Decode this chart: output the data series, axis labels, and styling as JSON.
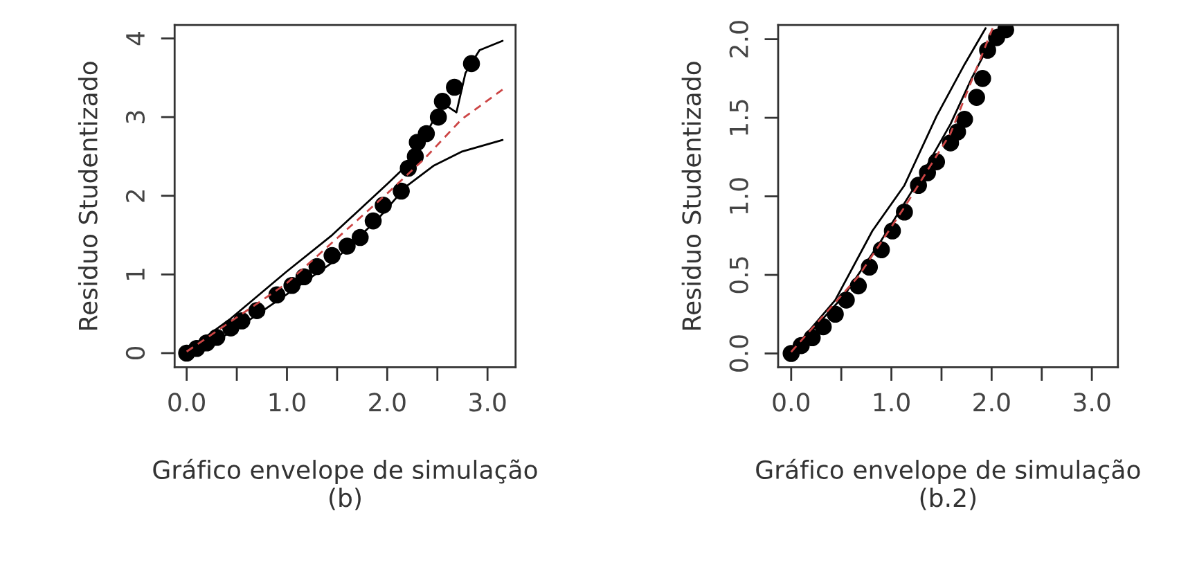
{
  "chart_data": [
    {
      "type": "scatter",
      "xlabel": "Gráfico envelope de simulação\n(b)",
      "ylabel": "Residuo Studentizado",
      "xlim": [
        -0.12,
        3.28
      ],
      "ylim": [
        -0.18,
        4.17
      ],
      "xticks": [
        {
          "value": 0,
          "label": "0.0"
        },
        {
          "value": 0.5,
          "label": null
        },
        {
          "value": 1,
          "label": "1.0"
        },
        {
          "value": 1.5,
          "label": null
        },
        {
          "value": 2,
          "label": "2.0"
        },
        {
          "value": 2.5,
          "label": null
        },
        {
          "value": 3,
          "label": "3.0"
        }
      ],
      "yticks": [
        0,
        1,
        2,
        3,
        4
      ],
      "grid": false,
      "legend": false,
      "series": [
        {
          "marker": "circle",
          "color": "#000000",
          "x": [
            0,
            0.1,
            0.2,
            0.3,
            0.44,
            0.55,
            0.7,
            0.9,
            1.05,
            1.17,
            1.3,
            1.45,
            1.6,
            1.73,
            1.86,
            1.96,
            2.14,
            2.21,
            2.28,
            2.3,
            2.39,
            2.51,
            2.55,
            2.67,
            2.84
          ],
          "values": [
            0,
            0.06,
            0.13,
            0.2,
            0.32,
            0.41,
            0.54,
            0.74,
            0.86,
            0.97,
            1.1,
            1.24,
            1.36,
            1.47,
            1.68,
            1.88,
            2.06,
            2.35,
            2.5,
            2.68,
            2.79,
            3.0,
            3.2,
            3.38,
            3.68
          ]
        },
        {
          "type": "line",
          "line_style": "solid",
          "color": "#000000",
          "x": [
            0,
            0.44,
            0.99,
            1.45,
            2.0,
            2.19,
            2.37,
            2.55,
            2.69,
            2.78,
            2.92,
            3.15
          ],
          "values": [
            0.03,
            0.44,
            1.03,
            1.5,
            2.15,
            2.38,
            2.74,
            3.18,
            3.06,
            3.56,
            3.85,
            3.97
          ]
        },
        {
          "type": "line",
          "line_style": "solid",
          "color": "#000000",
          "x": [
            0,
            0.44,
            0.99,
            1.45,
            1.91,
            2.19,
            2.46,
            2.74,
            3.15
          ],
          "values": [
            0,
            0.26,
            0.74,
            1.15,
            1.71,
            2.12,
            2.38,
            2.56,
            2.71
          ]
        },
        {
          "type": "line",
          "line_style": "dashed",
          "color": "#cc4444",
          "x": [
            0,
            0.99,
            2.0,
            2.37,
            2.74,
            3.15
          ],
          "values": [
            0.02,
            0.88,
            2.03,
            2.47,
            2.97,
            3.35
          ]
        }
      ]
    },
    {
      "type": "scatter",
      "xlabel": "Gráfico envelope de simulação\n(b.2)",
      "ylabel": "Residuo Studentizado",
      "xlim": [
        -0.13,
        3.26
      ],
      "ylim": [
        -0.088,
        2.09
      ],
      "xticks": [
        {
          "value": 0,
          "label": "0.0"
        },
        {
          "value": 0.5,
          "label": null
        },
        {
          "value": 1,
          "label": "1.0"
        },
        {
          "value": 1.5,
          "label": null
        },
        {
          "value": 2,
          "label": "2.0"
        },
        {
          "value": 2.5,
          "label": null
        },
        {
          "value": 3,
          "label": "3.0"
        }
      ],
      "yticks": [
        {
          "value": 0,
          "label": "0.0"
        },
        {
          "value": 0.5,
          "label": "0.5"
        },
        {
          "value": 1,
          "label": "1.0"
        },
        {
          "value": 1.5,
          "label": "1.5"
        },
        {
          "value": 2,
          "label": "2.0"
        }
      ],
      "grid": false,
      "legend": false,
      "series": [
        {
          "marker": "circle",
          "color": "#000000",
          "x": [
            0,
            0.1,
            0.21,
            0.32,
            0.44,
            0.55,
            0.67,
            0.78,
            0.9,
            1.01,
            1.13,
            1.27,
            1.36,
            1.45,
            1.59,
            1.66,
            1.73,
            1.85,
            1.91,
            1.96,
            2.05,
            2.14
          ],
          "values": [
            0,
            0.05,
            0.1,
            0.17,
            0.25,
            0.34,
            0.43,
            0.55,
            0.66,
            0.78,
            0.9,
            1.07,
            1.15,
            1.22,
            1.34,
            1.41,
            1.49,
            1.63,
            1.75,
            1.93,
            2.01,
            2.06
          ]
        },
        {
          "type": "line",
          "line_style": "solid",
          "color": "#000000",
          "x": [
            0,
            0.44,
            0.81,
            1.13,
            1.45,
            1.73,
            1.94
          ],
          "values": [
            0.01,
            0.34,
            0.78,
            1.07,
            1.51,
            1.84,
            2.07
          ]
        },
        {
          "type": "line",
          "line_style": "solid",
          "color": "#000000",
          "x": [
            0,
            0.53,
            0.9,
            1.27,
            1.59,
            1.8,
            2.05
          ],
          "values": [
            0,
            0.37,
            0.72,
            1.1,
            1.46,
            1.75,
            2.06
          ]
        },
        {
          "type": "line",
          "line_style": "dashed",
          "color": "#cc4444",
          "x": [
            0,
            0.67,
            1.13,
            1.59,
            2.01
          ],
          "values": [
            0.01,
            0.49,
            0.93,
            1.4,
            2.07
          ]
        }
      ]
    }
  ]
}
